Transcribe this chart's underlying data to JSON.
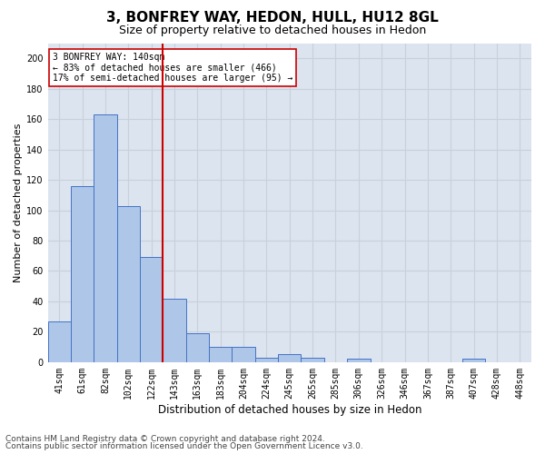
{
  "title1": "3, BONFREY WAY, HEDON, HULL, HU12 8GL",
  "title2": "Size of property relative to detached houses in Hedon",
  "xlabel": "Distribution of detached houses by size in Hedon",
  "ylabel": "Number of detached properties",
  "bar_labels": [
    "41sqm",
    "61sqm",
    "82sqm",
    "102sqm",
    "122sqm",
    "143sqm",
    "163sqm",
    "183sqm",
    "204sqm",
    "224sqm",
    "245sqm",
    "265sqm",
    "285sqm",
    "306sqm",
    "326sqm",
    "346sqm",
    "367sqm",
    "387sqm",
    "407sqm",
    "428sqm",
    "448sqm"
  ],
  "bar_values": [
    27,
    116,
    163,
    103,
    69,
    42,
    19,
    10,
    10,
    3,
    5,
    3,
    0,
    2,
    0,
    0,
    0,
    0,
    2,
    0,
    0
  ],
  "bar_color": "#aec6e8",
  "bar_edge_color": "#4472c4",
  "vline_x_index": 5,
  "vline_color": "#cc0000",
  "annotation_text": "3 BONFREY WAY: 140sqm\n← 83% of detached houses are smaller (466)\n17% of semi-detached houses are larger (95) →",
  "annotation_box_color": "#ffffff",
  "annotation_box_edge": "#cc0000",
  "ylim": [
    0,
    210
  ],
  "yticks": [
    0,
    20,
    40,
    60,
    80,
    100,
    120,
    140,
    160,
    180,
    200
  ],
  "grid_color": "#c8d0dc",
  "background_color": "#dce4f0",
  "fig_background": "#ffffff",
  "footer1": "Contains HM Land Registry data © Crown copyright and database right 2024.",
  "footer2": "Contains public sector information licensed under the Open Government Licence v3.0.",
  "title1_fontsize": 11,
  "title2_fontsize": 9,
  "xlabel_fontsize": 8.5,
  "ylabel_fontsize": 8,
  "tick_fontsize": 7,
  "annotation_fontsize": 7,
  "footer_fontsize": 6.5
}
